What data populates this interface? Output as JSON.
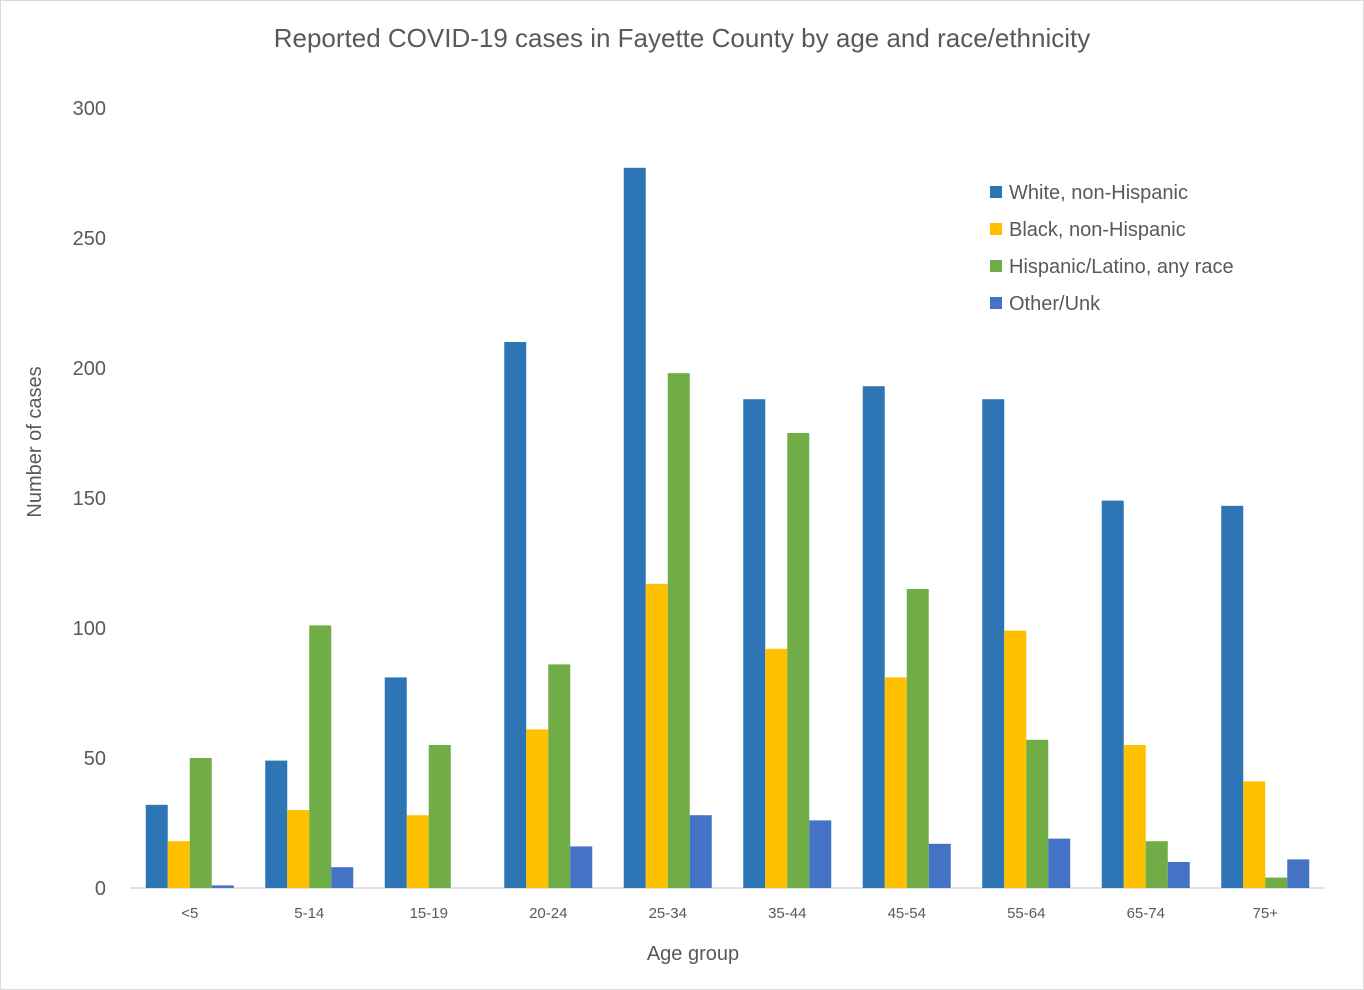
{
  "chart_data": {
    "type": "bar",
    "title": "Reported COVID-19 cases in Fayette County by age and race/ethnicity",
    "xlabel": "Age group",
    "ylabel": "Number of cases",
    "ylim": [
      0,
      300
    ],
    "yticks": [
      0,
      50,
      100,
      150,
      200,
      250,
      300
    ],
    "grid": false,
    "legend_position": "top-right",
    "categories": [
      "<5",
      "5-14",
      "15-19",
      "20-24",
      "25-34",
      "35-44",
      "45-54",
      "55-64",
      "65-74",
      "75+"
    ],
    "series": [
      {
        "name": "White, non-Hispanic",
        "color": "#2e75b6",
        "values": [
          32,
          49,
          81,
          210,
          277,
          188,
          193,
          188,
          149,
          147
        ]
      },
      {
        "name": "Black, non-Hispanic",
        "color": "#ffc000",
        "values": [
          18,
          30,
          28,
          61,
          117,
          92,
          81,
          99,
          55,
          41
        ]
      },
      {
        "name": "Hispanic/Latino, any race",
        "color": "#70ad47",
        "values": [
          50,
          101,
          55,
          86,
          198,
          175,
          115,
          57,
          18,
          4
        ]
      },
      {
        "name": "Other/Unk",
        "color": "#4472c4",
        "values": [
          1,
          8,
          0,
          16,
          28,
          26,
          17,
          19,
          10,
          11
        ]
      }
    ]
  }
}
